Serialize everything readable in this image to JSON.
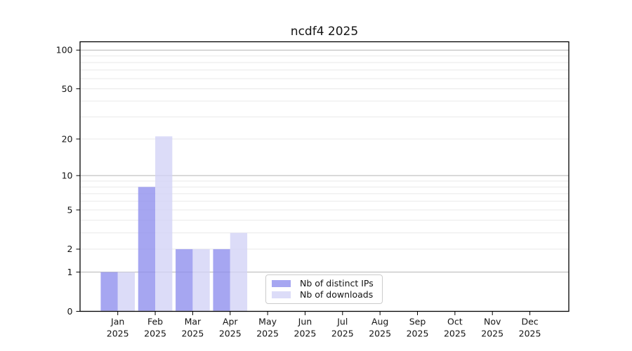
{
  "chart_data": {
    "type": "bar",
    "title": "ncdf4 2025",
    "categories": [
      "Jan",
      "Feb",
      "Mar",
      "Apr",
      "May",
      "Jun",
      "Jul",
      "Aug",
      "Sep",
      "Oct",
      "Nov",
      "Dec"
    ],
    "category_year": "2025",
    "series": [
      {
        "name": "Nb of distinct IPs",
        "values": [
          1,
          8,
          2,
          2,
          0,
          0,
          0,
          0,
          0,
          0,
          0,
          0
        ],
        "bar_color": "rgba(144,144,238,0.8)",
        "swatch_color": "#a6a6f1"
      },
      {
        "name": "Nb of downloads",
        "values": [
          1,
          21,
          2,
          3,
          0,
          0,
          0,
          0,
          0,
          0,
          0,
          0
        ],
        "bar_color": "rgba(211,211,246,0.8)",
        "swatch_color": "#dcdcf8"
      }
    ],
    "yscale": "log10(1+x)",
    "ylim": [
      0,
      116
    ],
    "yticks": [
      0,
      1,
      2,
      5,
      10,
      20,
      50,
      100
    ],
    "major_grid_values": [
      1,
      10,
      100
    ],
    "minor_grid_values": [
      2,
      3,
      4,
      5,
      6,
      7,
      8,
      9,
      20,
      30,
      40,
      50,
      60,
      70,
      80,
      90
    ],
    "grid": true,
    "legend_position": "lower center"
  },
  "colors": {
    "major_grid": "#b4b4b4",
    "minor_grid": "#e9e9e9",
    "axis": "#000000",
    "tick_text": "#141414",
    "background": "#ffffff"
  }
}
